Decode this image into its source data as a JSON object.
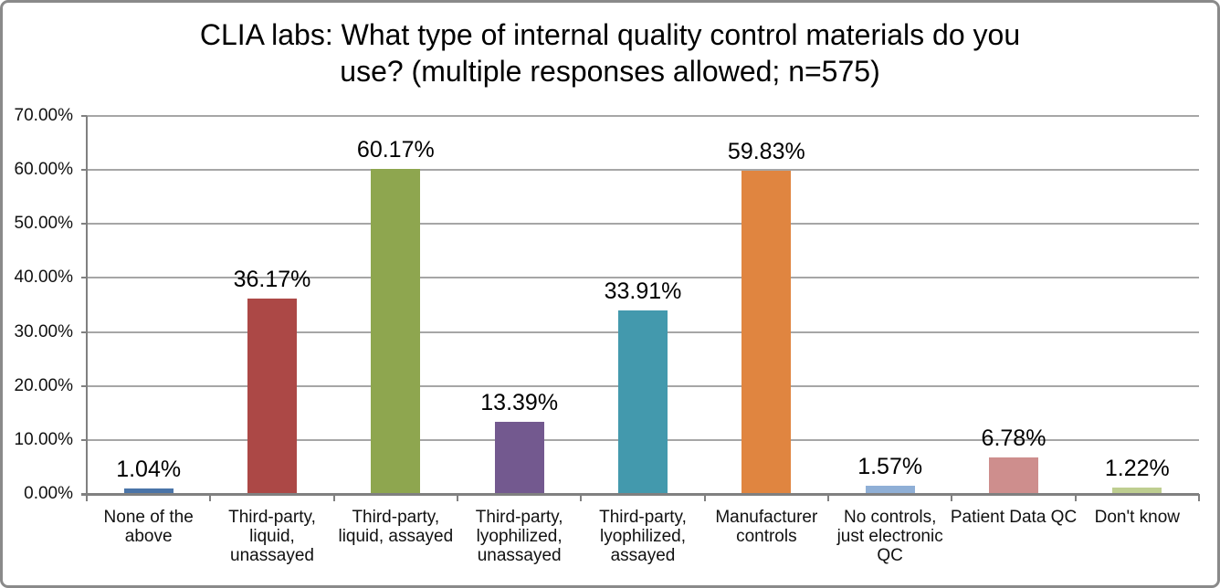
{
  "chart_data": {
    "type": "bar",
    "title": "CLIA labs: What type of internal quality control materials do you use? (multiple responses allowed; n=575)",
    "title_lines": [
      "CLIA labs: What type of internal quality control materials do you",
      "use? (multiple responses allowed; n=575)"
    ],
    "categories": [
      "None of the above",
      "Third-party, liquid, unassayed",
      "Third-party, liquid, assayed",
      "Third-party, lyophilized, unassayed",
      "Third-party, lyophilized, assayed",
      "Manufacturer controls",
      "No controls, just electronic QC",
      "Patient Data QC",
      "Don't know"
    ],
    "category_label_lines": [
      [
        "None of the",
        "above"
      ],
      [
        "Third-party,",
        "liquid,",
        "unassayed"
      ],
      [
        "Third-party,",
        "liquid, assayed"
      ],
      [
        "Third-party,",
        "lyophilized,",
        "unassayed"
      ],
      [
        "Third-party,",
        "lyophilized,",
        "assayed"
      ],
      [
        "Manufacturer",
        "controls"
      ],
      [
        "No controls,",
        "just electronic",
        "QC"
      ],
      [
        "Patient Data QC"
      ],
      [
        "Don't know"
      ]
    ],
    "values": [
      1.04,
      36.17,
      60.17,
      13.39,
      33.91,
      59.83,
      1.57,
      6.78,
      1.22
    ],
    "value_labels": [
      "1.04%",
      "36.17%",
      "60.17%",
      "13.39%",
      "33.91%",
      "59.83%",
      "1.57%",
      "6.78%",
      "1.22%"
    ],
    "bar_colors": [
      "#4A74A8",
      "#AC4846",
      "#8EA64F",
      "#73598F",
      "#4399AD",
      "#E08540",
      "#8FAFD6",
      "#CE8E8D",
      "#BECE90"
    ],
    "xlabel": "",
    "ylabel": "",
    "ylim": [
      0,
      70
    ],
    "y_tick_step": 10,
    "y_tick_labels": [
      "0.00%",
      "10.00%",
      "20.00%",
      "30.00%",
      "40.00%",
      "50.00%",
      "60.00%",
      "70.00%"
    ],
    "grid": true,
    "legend": "none"
  },
  "frame": {
    "background": "#FFFFFF",
    "border_color": "#8A8A8A",
    "gridline_color": "#A6A6A6",
    "axis_color": "#808080",
    "title_color": "#000000",
    "label_color": "#111111"
  }
}
